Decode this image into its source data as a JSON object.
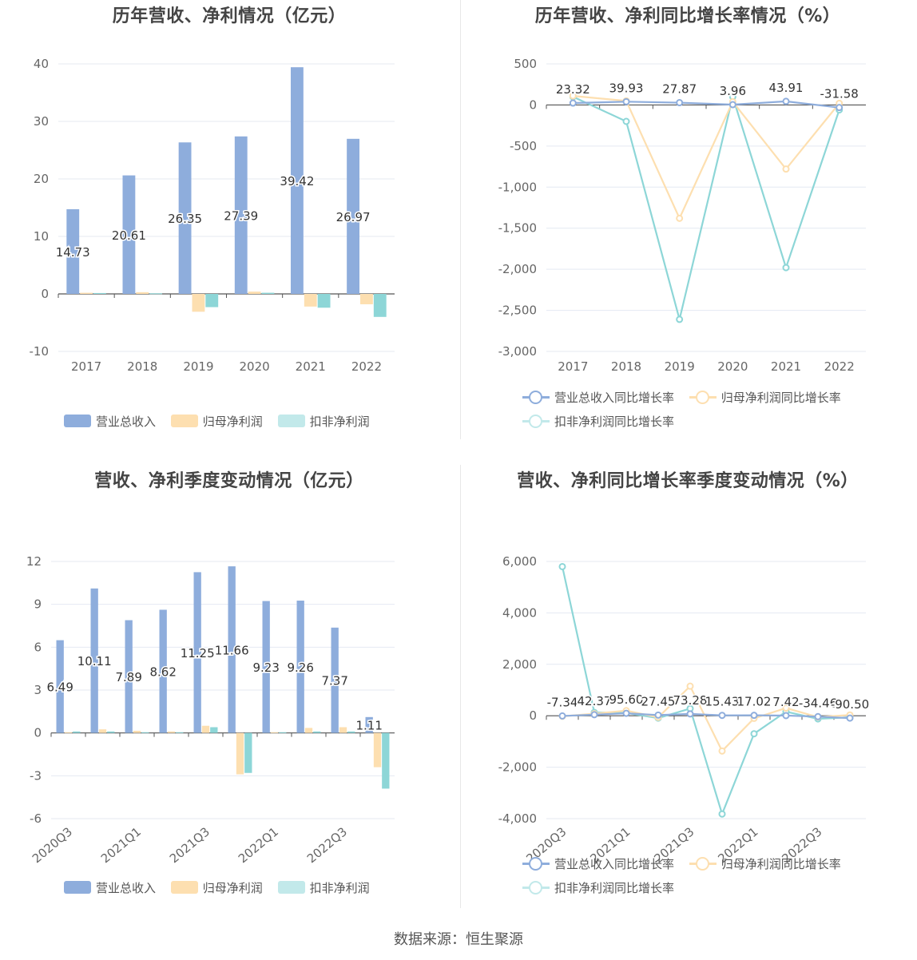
{
  "panels": [
    {
      "title": "历年营收、净利情况（亿元）"
    },
    {
      "title": "历年营收、净利同比增长率情况（%）"
    },
    {
      "title": "营收、净利季度变动情况（亿元）"
    },
    {
      "title": "营收、净利同比增长率季度变动情况（%）"
    }
  ],
  "legends": {
    "bars": [
      "营业总收入",
      "归母净利润",
      "扣非净利润"
    ],
    "lines": [
      "营业总收入同比增长率",
      "归母净利润同比增长率",
      "扣非净利润同比增长率"
    ]
  },
  "colors": {
    "revenue": "#8eaddc",
    "net_profit": "#fddfb0",
    "deducted_profit": "#8dd6d7",
    "grid": "#e4e9f2",
    "axis": "#555555"
  },
  "source": "数据来源：恒生聚源",
  "chart_data": [
    {
      "type": "bar",
      "categories": [
        "2017",
        "2018",
        "2019",
        "2020",
        "2021",
        "2022"
      ],
      "ylim": [
        -10,
        40
      ],
      "yticks": [
        "-10",
        "0",
        "10",
        "20",
        "30",
        "40"
      ],
      "label_series": 0,
      "series": [
        {
          "name": "营业总收入",
          "values": [
            14.73,
            20.61,
            26.35,
            27.39,
            39.42,
            26.97
          ],
          "labels": [
            "14.73",
            "20.61",
            "26.35",
            "27.39",
            "39.42",
            "26.97"
          ]
        },
        {
          "name": "归母净利润",
          "values": [
            0.2,
            0.3,
            -3.1,
            0.4,
            -2.2,
            -1.8
          ]
        },
        {
          "name": "扣非净利润",
          "values": [
            0.15,
            0.1,
            -2.3,
            0.2,
            -2.4,
            -4.0
          ]
        }
      ]
    },
    {
      "type": "line",
      "categories": [
        "2017",
        "2018",
        "2019",
        "2020",
        "2021",
        "2022"
      ],
      "ylim": [
        -3000,
        500
      ],
      "yticks": [
        "-3,000",
        "-2,500",
        "-2,000",
        "-1,500",
        "-1,000",
        "-500",
        "0",
        "500"
      ],
      "label_series": 0,
      "series": [
        {
          "name": "营业总收入同比增长率",
          "values": [
            23.32,
            39.93,
            27.87,
            3.96,
            43.91,
            -31.58
          ],
          "labels": [
            "23.32",
            "39.93",
            "27.87",
            "3.96",
            "43.91",
            "-31.58"
          ]
        },
        {
          "name": "归母净利润同比增长率",
          "values": [
            110,
            50,
            -1380,
            40,
            -780,
            20
          ]
        },
        {
          "name": "扣非净利润同比增长率",
          "values": [
            100,
            -200,
            -2610,
            100,
            -1980,
            -60
          ]
        }
      ]
    },
    {
      "type": "bar",
      "categories": [
        "2020Q3",
        "2020Q4",
        "2021Q1",
        "2021Q2",
        "2021Q3",
        "2021Q4",
        "2022Q1",
        "2022Q2",
        "2022Q3",
        "2022Q4"
      ],
      "xtick_every": 2,
      "ylim": [
        -6,
        12
      ],
      "yticks": [
        "-6",
        "-3",
        "0",
        "3",
        "6",
        "9",
        "12"
      ],
      "label_series": 0,
      "series": [
        {
          "name": "营业总收入",
          "values": [
            6.49,
            10.11,
            7.89,
            8.62,
            11.25,
            11.66,
            9.23,
            9.26,
            7.37,
            1.11
          ],
          "labels": [
            "6.49",
            "10.11",
            "7.89",
            "8.62",
            "11.25",
            "11.66",
            "9.23",
            "9.26",
            "7.37",
            "1.11"
          ]
        },
        {
          "name": "归母净利润",
          "values": [
            0.05,
            0.25,
            0.15,
            0.1,
            0.5,
            -2.9,
            0.05,
            0.35,
            0.4,
            -2.4
          ]
        },
        {
          "name": "扣非净利润",
          "values": [
            0.1,
            0.1,
            0.05,
            0.05,
            0.4,
            -2.8,
            0.05,
            0.1,
            0.1,
            -3.9
          ]
        }
      ]
    },
    {
      "type": "line",
      "categories": [
        "2020Q3",
        "2020Q4",
        "2021Q1",
        "2021Q2",
        "2021Q3",
        "2021Q4",
        "2022Q1",
        "2022Q2",
        "2022Q3",
        "2022Q4"
      ],
      "xtick_every": 2,
      "ylim": [
        -4000,
        6000
      ],
      "yticks": [
        "-4,000",
        "-2,000",
        "0",
        "2,000",
        "4,000",
        "6,000"
      ],
      "label_series": 0,
      "series": [
        {
          "name": "营业总收入同比增长率",
          "values": [
            -7.34,
            42.37,
            95.6,
            27.45,
            73.28,
            15.43,
            17.02,
            7.42,
            -34.46,
            -90.5
          ],
          "labels": [
            "-7.34",
            "42.37",
            "95.60",
            "27.45",
            "73.28",
            "15.43",
            "17.02",
            "7.42",
            "-34.46",
            "-90.50"
          ]
        },
        {
          "name": "归母净利润同比增长率",
          "values": [
            -20,
            80,
            200,
            -60,
            1150,
            -1370,
            -100,
            300,
            -50,
            30
          ]
        },
        {
          "name": "扣非净利润同比增长率",
          "values": [
            5800,
            130,
            110,
            -90,
            280,
            -3820,
            -700,
            160,
            -120,
            -60
          ]
        }
      ]
    }
  ]
}
